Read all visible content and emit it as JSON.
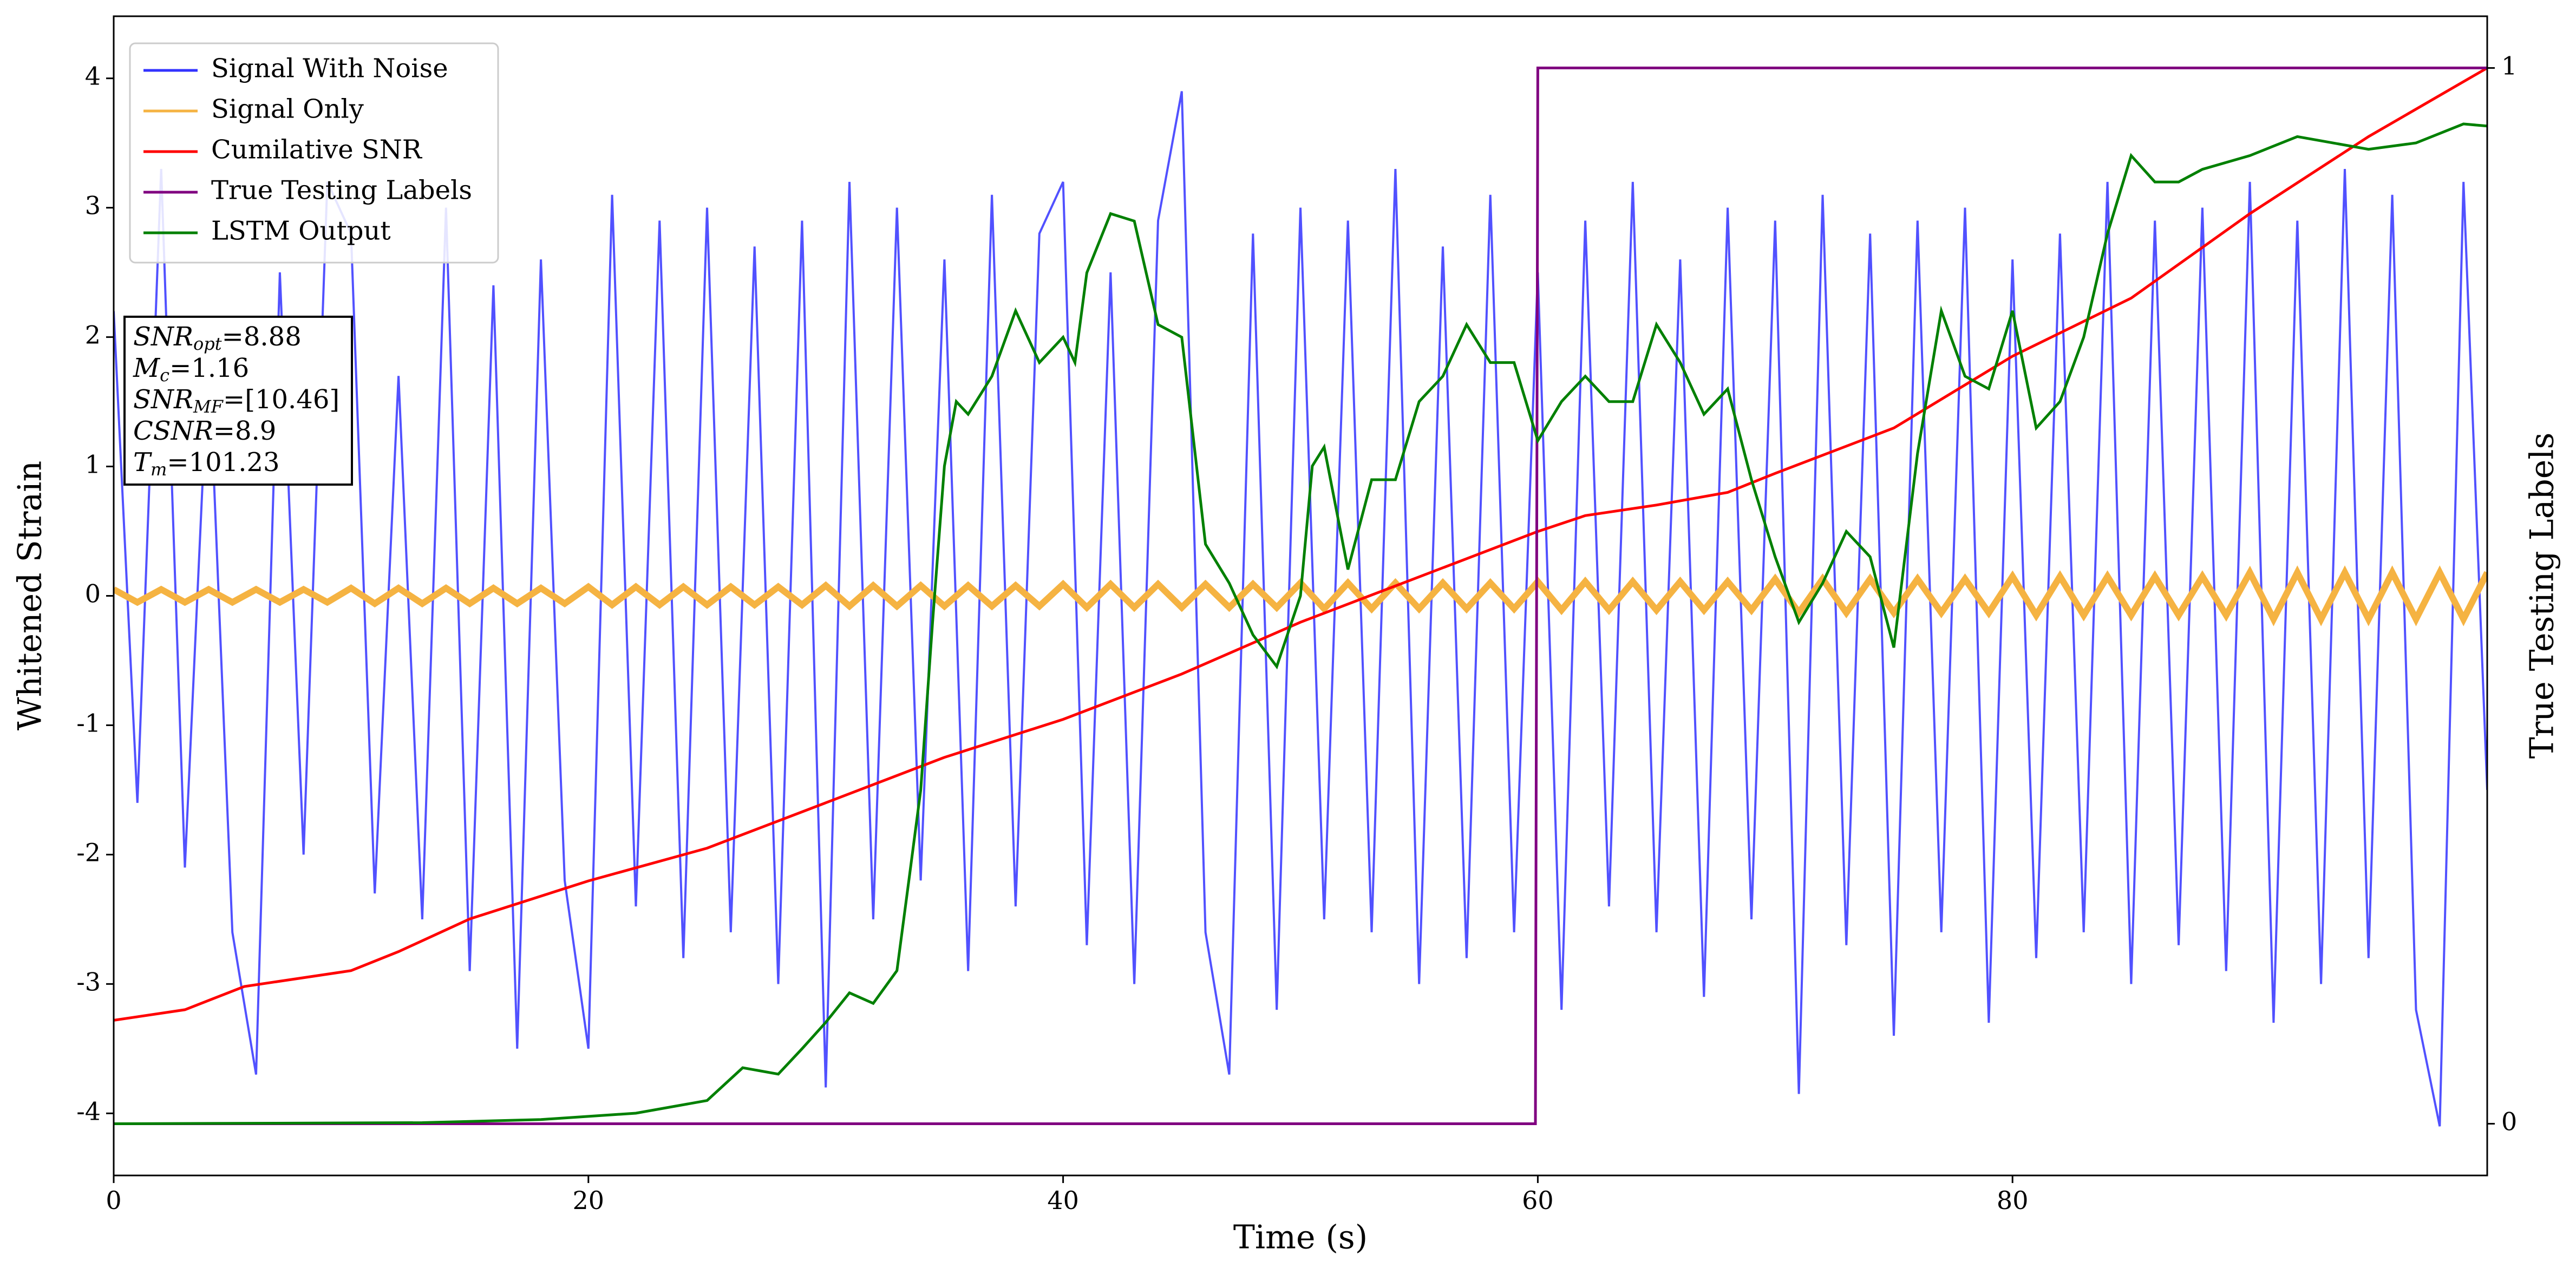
{
  "chart_data": {
    "type": "line",
    "xlabel": "Time (s)",
    "ylabel": "Whitened Strain",
    "y2label": "True Testing Labels",
    "xlim": [
      0,
      100
    ],
    "xticks": [
      0,
      20,
      40,
      60,
      80
    ],
    "ylim": [
      -4.48,
      4.48
    ],
    "yticks": [
      -4,
      -3,
      -2,
      -1,
      0,
      1,
      2,
      3,
      4
    ],
    "y2lim": [
      -0.049,
      1.049
    ],
    "y2ticks": [
      0,
      1
    ],
    "legend": "upper left",
    "x": [
      0,
      1,
      2,
      3,
      4,
      5,
      6,
      7,
      8,
      9,
      10,
      11,
      12,
      13,
      14,
      15,
      16,
      17,
      18,
      19,
      20,
      21,
      22,
      23,
      24,
      25,
      26,
      27,
      28,
      29,
      30,
      31,
      32,
      33,
      34,
      35,
      36,
      37,
      38,
      39,
      40,
      41,
      42,
      43,
      44,
      45,
      46,
      47,
      48,
      49,
      50,
      51,
      52,
      53,
      54,
      55,
      56,
      57,
      58,
      59,
      60,
      61,
      62,
      63,
      64,
      65,
      66,
      67,
      68,
      69,
      70,
      71,
      72,
      73,
      74,
      75,
      76,
      77,
      78,
      79,
      80,
      81,
      82,
      83,
      84,
      85,
      86,
      87,
      88,
      89,
      90,
      91,
      92,
      93,
      94,
      95,
      96,
      97,
      98,
      99,
      100
    ],
    "series": [
      {
        "name": "Signal With Noise",
        "color": "#3333ff",
        "values": [
          2.2,
          -1.6,
          3.3,
          -2.1,
          1.9,
          -2.6,
          -3.7,
          2.5,
          -2.0,
          3.2,
          2.8,
          -2.3,
          1.7,
          -2.5,
          3.0,
          -2.9,
          2.4,
          -3.5,
          2.6,
          -2.2,
          -3.5,
          3.1,
          -2.4,
          2.9,
          -2.8,
          3.0,
          -2.6,
          2.7,
          -3.0,
          2.9,
          -3.8,
          3.2,
          -2.5,
          3.0,
          -2.2,
          2.6,
          -2.9,
          3.1,
          -2.4,
          2.8,
          3.2,
          -2.7,
          2.5,
          -3.0,
          2.9,
          3.9,
          -2.6,
          -3.7,
          2.8,
          -3.2,
          3.0,
          -2.5,
          2.9,
          -2.6,
          3.3,
          -3.0,
          2.7,
          -2.8,
          3.1,
          -2.6,
          2.5,
          -3.2,
          2.9,
          -2.4,
          3.2,
          -2.6,
          2.6,
          -3.1,
          3.0,
          -2.5,
          2.9,
          -3.85,
          3.1,
          -2.7,
          2.8,
          -3.4,
          2.9,
          -2.6,
          3.0,
          -3.3,
          2.6,
          -2.8,
          2.8,
          -2.6,
          3.2,
          -3.0,
          2.9,
          -2.7,
          3.0,
          -2.9,
          3.2,
          -3.3,
          2.9,
          -3.0,
          3.3,
          -2.8,
          3.1,
          -3.2,
          -4.1,
          3.2,
          -1.5
        ]
      },
      {
        "name": "Signal Only",
        "color": "#f5b342",
        "values": [
          0.05,
          -0.05,
          0.05,
          -0.05,
          0.05,
          -0.05,
          0.05,
          -0.05,
          0.05,
          -0.05,
          0.06,
          -0.06,
          0.06,
          -0.06,
          0.06,
          -0.06,
          0.06,
          -0.06,
          0.06,
          -0.06,
          0.07,
          -0.07,
          0.07,
          -0.07,
          0.07,
          -0.07,
          0.07,
          -0.07,
          0.07,
          -0.07,
          0.08,
          -0.08,
          0.08,
          -0.08,
          0.08,
          -0.08,
          0.08,
          -0.08,
          0.08,
          -0.08,
          0.09,
          -0.09,
          0.09,
          -0.09,
          0.09,
          -0.09,
          0.09,
          -0.09,
          0.09,
          -0.09,
          0.1,
          -0.1,
          0.1,
          -0.1,
          0.1,
          -0.1,
          0.1,
          -0.1,
          0.1,
          -0.1,
          0.11,
          -0.11,
          0.11,
          -0.11,
          0.11,
          -0.11,
          0.11,
          -0.11,
          0.11,
          -0.11,
          0.13,
          -0.13,
          0.13,
          -0.13,
          0.13,
          -0.13,
          0.13,
          -0.13,
          0.13,
          -0.13,
          0.15,
          -0.15,
          0.15,
          -0.15,
          0.15,
          -0.15,
          0.15,
          -0.15,
          0.15,
          -0.15,
          0.18,
          -0.18,
          0.18,
          -0.18,
          0.18,
          -0.18,
          0.18,
          -0.18,
          0.18,
          -0.18,
          0.18
        ]
      },
      {
        "name": "Cumilative SNR",
        "color": "#ff0000",
        "axis": "y2",
        "x": [
          0,
          3,
          5.5,
          10,
          12,
          15,
          20,
          25,
          30,
          35,
          40,
          45,
          50,
          55,
          60,
          62,
          65,
          68,
          70,
          75,
          80,
          85,
          90,
          95,
          100
        ],
        "values": [
          0.098,
          0.108,
          0.13,
          0.145,
          0.163,
          0.194,
          0.23,
          0.261,
          0.304,
          0.347,
          0.383,
          0.426,
          0.475,
          0.518,
          0.561,
          0.576,
          0.586,
          0.598,
          0.616,
          0.659,
          0.727,
          0.782,
          0.862,
          0.935,
          1.0
        ]
      },
      {
        "name": "True Testing Labels",
        "color": "#800080",
        "axis": "y2",
        "x": [
          0,
          59.9,
          60,
          100
        ],
        "values": [
          0,
          0,
          1,
          1
        ]
      },
      {
        "name": "LSTM Output",
        "color": "#008000",
        "axis": "y2",
        "x": [
          0,
          13,
          18,
          22,
          25,
          26.5,
          28,
          29,
          30,
          31,
          32,
          33,
          33.5,
          34,
          34.5,
          35,
          35.5,
          36,
          37,
          38,
          39,
          40,
          40.5,
          41,
          42,
          43,
          44,
          45,
          46,
          47,
          48,
          49,
          50,
          50.5,
          51,
          52,
          53,
          54,
          55,
          56,
          57,
          58,
          59,
          60,
          61,
          62,
          63,
          64,
          65,
          66,
          67,
          68,
          69,
          70,
          71,
          72,
          73,
          74,
          75,
          76,
          77,
          78,
          79,
          80,
          81,
          82,
          83,
          84,
          85,
          86,
          87,
          88,
          90,
          92,
          95,
          97,
          99,
          100
        ],
        "values": [
          0,
          0.001,
          0.004,
          0.01,
          0.022,
          0.053,
          0.047,
          0.071,
          0.096,
          0.124,
          0.114,
          0.145,
          0.23,
          0.316,
          0.475,
          0.623,
          0.684,
          0.672,
          0.708,
          0.77,
          0.721,
          0.745,
          0.721,
          0.806,
          0.862,
          0.855,
          0.757,
          0.745,
          0.549,
          0.512,
          0.463,
          0.433,
          0.5,
          0.623,
          0.641,
          0.525,
          0.61,
          0.61,
          0.684,
          0.708,
          0.757,
          0.721,
          0.721,
          0.647,
          0.684,
          0.708,
          0.684,
          0.684,
          0.757,
          0.721,
          0.672,
          0.696,
          0.61,
          0.537,
          0.475,
          0.512,
          0.561,
          0.537,
          0.451,
          0.635,
          0.77,
          0.708,
          0.696,
          0.77,
          0.659,
          0.684,
          0.745,
          0.843,
          0.917,
          0.892,
          0.892,
          0.904,
          0.917,
          0.935,
          0.923,
          0.929,
          0.947,
          0.945
        ]
      }
    ],
    "annotation": [
      {
        "base": "SNR",
        "sub": "opt",
        "rest": "=8.88"
      },
      {
        "base": "M",
        "sub": "c",
        "rest": "=1.16"
      },
      {
        "base": "SNR",
        "sub": "MF",
        "rest": "=[10.46]"
      },
      {
        "base": "CSNR",
        "rest": "=8.9"
      },
      {
        "base": "T",
        "sub": "m",
        "rest": "=101.23"
      }
    ]
  }
}
